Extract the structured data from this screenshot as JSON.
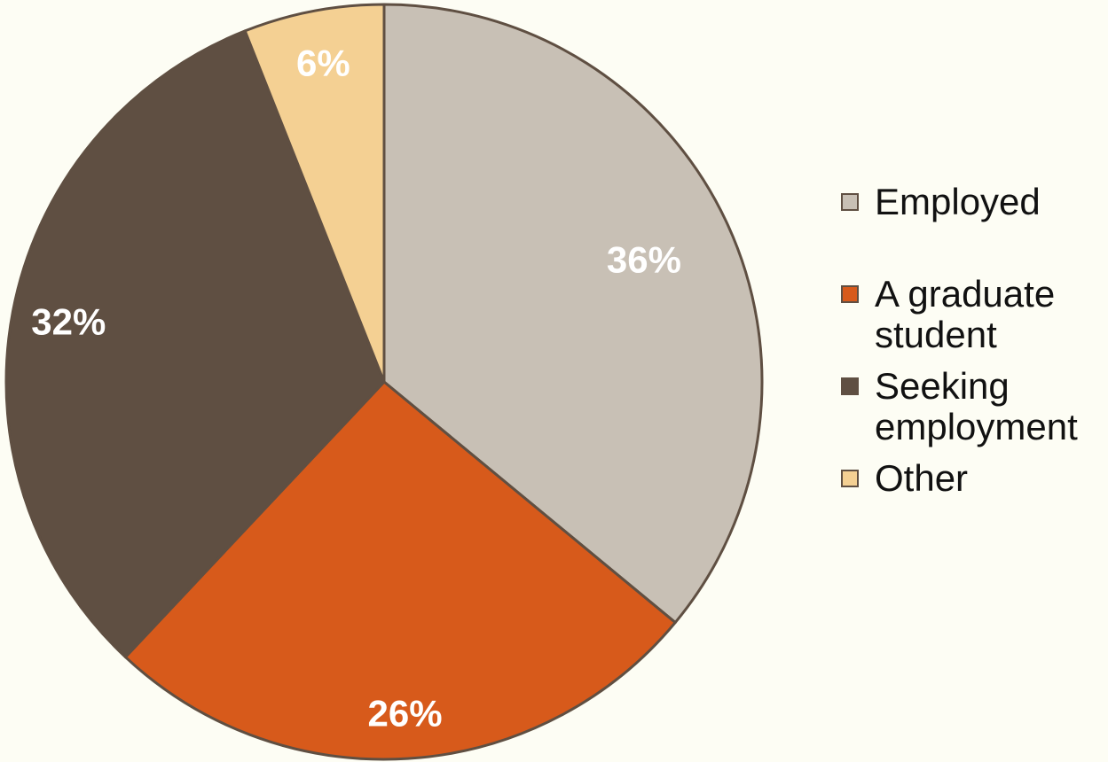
{
  "chart_data": {
    "type": "pie",
    "categories": [
      "Employed",
      "A graduate student",
      "Seeking employment",
      "Other"
    ],
    "values": [
      36,
      26,
      32,
      6
    ],
    "labels": [
      "36%",
      "26%",
      "32%",
      "6%"
    ],
    "colors": [
      "#c8c0b5",
      "#d75a1b",
      "#5f4f42",
      "#f4d093"
    ],
    "legend_lines": [
      [
        "Employed"
      ],
      [
        "A graduate",
        "student"
      ],
      [
        "Seeking",
        "employment"
      ],
      [
        "Other"
      ]
    ],
    "title": "",
    "legend": "right",
    "start": "12 o'clock, clockwise"
  }
}
